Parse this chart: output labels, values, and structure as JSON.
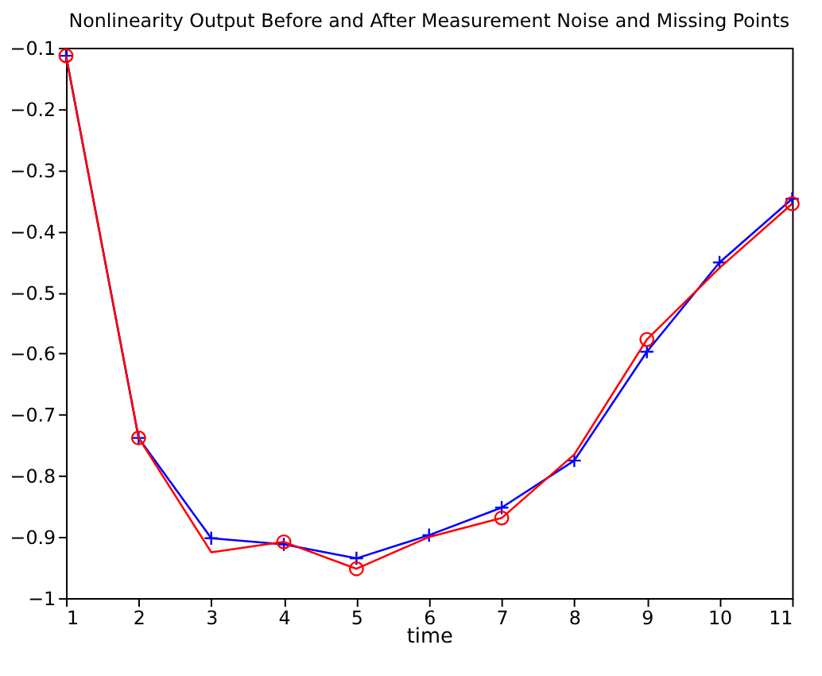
{
  "chart_data": {
    "type": "line",
    "title": "Nonlinearity Output Before and After Measurement Noise and Missing Points",
    "xlabel": "time",
    "x": [
      1,
      2,
      3,
      4,
      5,
      6,
      7,
      8,
      9,
      10,
      11
    ],
    "series": [
      {
        "color": "#0000ff",
        "marker": "cross",
        "values": [
          -0.113,
          -0.738,
          -0.902,
          -0.912,
          -0.935,
          -0.897,
          -0.852,
          -0.775,
          -0.597,
          -0.451,
          -0.347
        ]
      },
      {
        "color": "#ff0000",
        "marker": "none",
        "values": [
          -0.113,
          -0.738,
          -0.925,
          -0.908,
          -0.952,
          -0.9,
          -0.869,
          -0.765,
          -0.577,
          -0.46,
          -0.355
        ]
      },
      {
        "type": "scatter",
        "color": "#ff0000",
        "marker": "circle",
        "x": [
          1,
          2,
          4,
          5,
          7,
          9,
          11
        ],
        "values": [
          -0.113,
          -0.738,
          -0.908,
          -0.952,
          -0.869,
          -0.577,
          -0.355
        ]
      }
    ],
    "xlim": [
      1,
      11
    ],
    "xticks": [
      1,
      2,
      3,
      4,
      5,
      6,
      7,
      8,
      9,
      10,
      11
    ],
    "ylim": [
      -1,
      -0.1
    ],
    "yticks": [
      -1,
      -0.9,
      -0.8,
      -0.7,
      -0.6,
      -0.5,
      -0.4,
      -0.3,
      -0.2,
      -0.1
    ],
    "grid": false
  }
}
